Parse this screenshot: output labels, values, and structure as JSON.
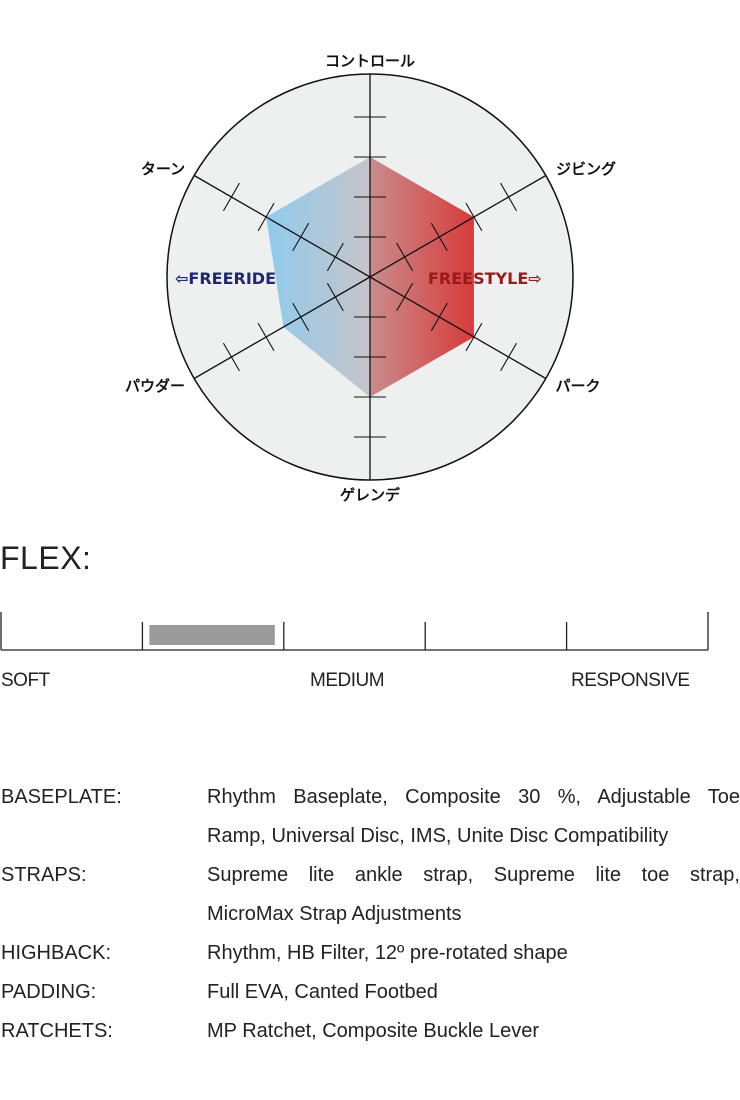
{
  "chart_data": {
    "type": "radar",
    "axes": [
      "コントロール",
      "ジビング",
      "パーク",
      "ゲレンデ",
      "パウダー",
      "ターン"
    ],
    "values": [
      3,
      3,
      3,
      3,
      2.5,
      3
    ],
    "rmax": 5,
    "ticks": [
      1,
      2,
      3,
      4
    ],
    "left_label": "⇦FREERIDE",
    "right_label": "FREESTYLE⇨",
    "colors": {
      "left": "#8fcbee",
      "center": "#c6c4c9",
      "center_right": "#c98c8c",
      "right": "#d83a3a",
      "left_label": "#1e2a6e",
      "right_label": "#9a1a1a",
      "background": "#eef0f0"
    }
  },
  "flex": {
    "title": "FLEX:",
    "segments": 5,
    "selected_segment": 2,
    "scale_labels": [
      "SOFT",
      "MEDIUM",
      "RESPONSIVE"
    ],
    "fill_color": "#9b9b9b"
  },
  "specs": [
    {
      "label": "BASEPLATE:",
      "lines": [
        "Rhythm Baseplate, Composite 30 %, Adjustable Toe",
        "Ramp, Universal Disc, IMS, Unite Disc Compatibility"
      ]
    },
    {
      "label": "STRAPS:",
      "lines": [
        "Supreme lite ankle strap, Supreme lite toe strap,",
        "MicroMax Strap Adjustments"
      ]
    },
    {
      "label": "HIGHBACK:",
      "lines": [
        "Rhythm, HB Filter, 12º pre-rotated shape"
      ]
    },
    {
      "label": "PADDING:",
      "lines": [
        "Full EVA, Canted Footbed"
      ]
    },
    {
      "label": "RATCHETS:",
      "lines": [
        "MP Ratchet, Composite Buckle Lever"
      ]
    }
  ]
}
